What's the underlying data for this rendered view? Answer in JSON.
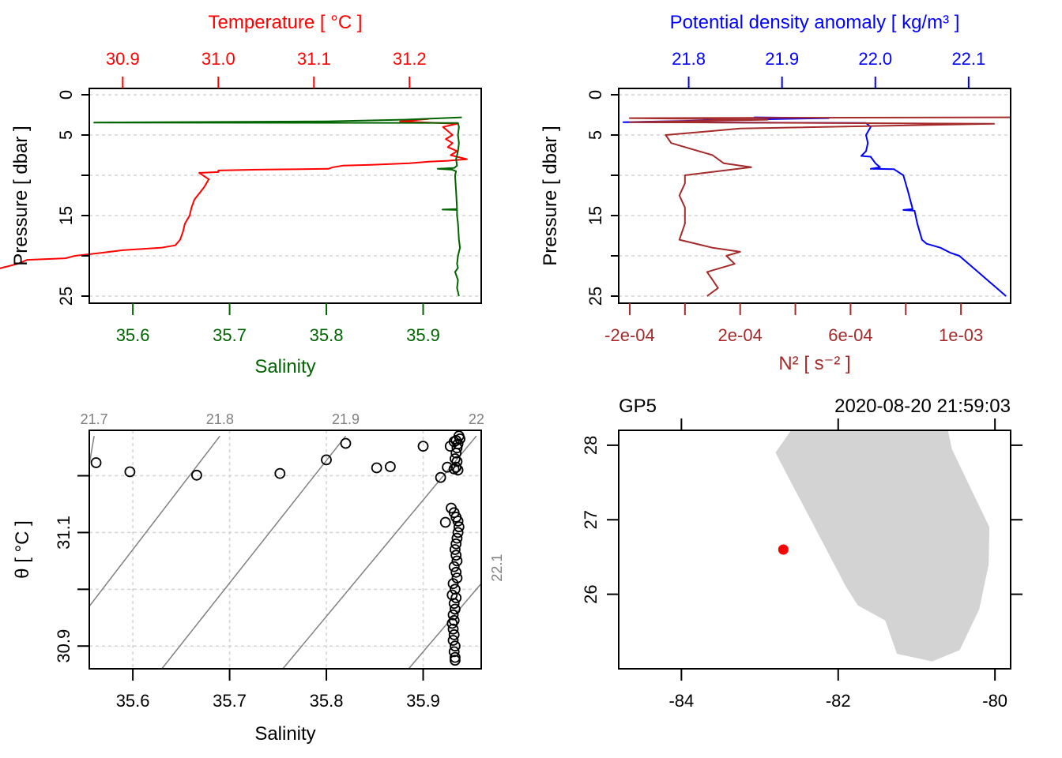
{
  "colors": {
    "temperature": "#ff0000",
    "salinity": "#006400",
    "density": "#0000ff",
    "n2": "#a52a2a",
    "isopycnal": "#808080",
    "grid": "#d3d3d3",
    "land": "#d3d3d3",
    "station": "#ff0000",
    "axis": "#000000"
  },
  "chart_data": [
    {
      "id": "ts-profile",
      "type": "line",
      "title": "",
      "ylabel": "Pressure [ dbar ]",
      "ylim": [
        0,
        25
      ],
      "yreverse": true,
      "yticks": [
        0,
        5,
        10,
        15,
        20,
        25
      ],
      "ytick_labels": [
        "0",
        "5",
        "",
        "15",
        "",
        "25"
      ],
      "grid": "horizontal-dashed",
      "top_axis": {
        "label": "Temperature [ °C ]",
        "range": [
          30.865,
          31.275
        ],
        "ticks": [
          30.9,
          31.0,
          31.1,
          31.2
        ],
        "tick_labels": [
          "30.9",
          "31.0",
          "31.1",
          "31.2"
        ]
      },
      "bottom_axis": {
        "label": "Salinity",
        "range": [
          35.555,
          35.96
        ],
        "ticks": [
          35.6,
          35.7,
          35.8,
          35.9
        ],
        "tick_labels": [
          "35.6",
          "35.7",
          "35.8",
          "35.9"
        ]
      },
      "series": [
        {
          "name": "Temperature",
          "axis": "top",
          "points": [
            [
              31.22,
              3.0
            ],
            [
              31.19,
              3.3
            ],
            [
              31.21,
              3.4
            ],
            [
              31.25,
              3.6
            ],
            [
              31.235,
              4.0
            ],
            [
              31.24,
              4.5
            ],
            [
              31.245,
              5.0
            ],
            [
              31.238,
              5.5
            ],
            [
              31.245,
              6.0
            ],
            [
              31.24,
              6.5
            ],
            [
              31.25,
              7.0
            ],
            [
              31.243,
              7.5
            ],
            [
              31.26,
              8.0
            ],
            [
              31.24,
              8.2
            ],
            [
              31.22,
              8.3
            ],
            [
              31.2,
              8.5
            ],
            [
              31.18,
              8.6
            ],
            [
              31.16,
              8.7
            ],
            [
              31.13,
              8.8
            ],
            [
              31.12,
              9.0
            ],
            [
              31.115,
              9.2
            ],
            [
              31.04,
              9.3
            ],
            [
              31.0,
              9.4
            ],
            [
              31.0,
              9.6
            ],
            [
              30.98,
              9.7
            ],
            [
              30.99,
              10.5
            ],
            [
              30.985,
              11.5
            ],
            [
              30.975,
              13.0
            ],
            [
              30.972,
              14.0
            ],
            [
              30.97,
              15.0
            ],
            [
              30.965,
              16.0
            ],
            [
              30.963,
              17.0
            ],
            [
              30.96,
              18.0
            ],
            [
              30.955,
              18.7
            ],
            [
              30.94,
              19.0
            ],
            [
              30.9,
              19.3
            ],
            [
              30.88,
              19.6
            ],
            [
              30.85,
              20.0
            ],
            [
              30.84,
              20.3
            ],
            [
              30.8,
              20.5
            ],
            [
              30.79,
              21.0
            ],
            [
              30.77,
              21.6
            ],
            [
              30.72,
              21.9
            ],
            [
              30.7,
              22.1
            ],
            [
              30.66,
              22.7
            ],
            [
              30.62,
              23.0
            ],
            [
              30.6,
              23.3
            ],
            [
              30.57,
              23.6
            ],
            [
              30.54,
              24.0
            ],
            [
              30.52,
              24.3
            ],
            [
              30.5,
              24.7
            ],
            [
              30.48,
              25.0
            ]
          ]
        },
        {
          "name": "Salinity",
          "axis": "bottom",
          "points": [
            [
              35.937,
              25.0
            ],
            [
              35.935,
              24.0
            ],
            [
              35.936,
              23.0
            ],
            [
              35.933,
              22.0
            ],
            [
              35.936,
              21.5
            ],
            [
              35.935,
              21.0
            ],
            [
              35.936,
              20.0
            ],
            [
              35.938,
              19.0
            ],
            [
              35.937,
              18.0
            ],
            [
              35.936,
              16.0
            ],
            [
              35.935,
              15.0
            ],
            [
              35.935,
              14.3
            ],
            [
              35.92,
              14.25
            ],
            [
              35.935,
              14.2
            ],
            [
              35.934,
              12.0
            ],
            [
              35.933,
              10.0
            ],
            [
              35.934,
              9.5
            ],
            [
              35.93,
              9.3
            ],
            [
              35.915,
              9.2
            ],
            [
              35.932,
              9.1
            ],
            [
              35.935,
              8.8
            ],
            [
              35.934,
              8.0
            ],
            [
              35.936,
              7.0
            ],
            [
              35.937,
              6.0
            ],
            [
              35.936,
              5.0
            ],
            [
              35.937,
              4.0
            ],
            [
              35.936,
              3.5
            ],
            [
              35.56,
              3.45
            ],
            [
              35.8,
              3.3
            ],
            [
              35.88,
              3.1
            ],
            [
              35.94,
              2.8
            ]
          ]
        }
      ]
    },
    {
      "id": "density-n2-profile",
      "type": "line",
      "ylabel": "Pressure [ dbar ]",
      "ylim": [
        0,
        25
      ],
      "yreverse": true,
      "yticks": [
        0,
        5,
        10,
        15,
        20,
        25
      ],
      "ytick_labels": [
        "0",
        "5",
        "",
        "15",
        "",
        "25"
      ],
      "grid": "horizontal-dashed",
      "top_axis": {
        "label": "Potential density anomaly [ kg/m³ ]",
        "range": [
          21.725,
          22.145
        ],
        "ticks": [
          21.8,
          21.9,
          22.0,
          22.1
        ],
        "tick_labels": [
          "21.8",
          "21.9",
          "22.0",
          "22.1"
        ]
      },
      "bottom_axis": {
        "label": "N² [ s⁻² ]",
        "range": [
          -0.00024,
          0.00118
        ],
        "ticks": [
          -0.0002,
          0.0,
          0.0002,
          0.0004,
          0.0006,
          0.0008,
          0.001
        ],
        "tick_labels": [
          "-2e-04",
          "",
          "2e-04",
          "",
          "6e-04",
          "",
          "1e-03"
        ]
      },
      "series": [
        {
          "name": "Potential density anomaly",
          "axis": "top",
          "points": [
            [
              21.87,
              2.8
            ],
            [
              21.95,
              2.9
            ],
            [
              21.9,
              3.0
            ],
            [
              21.73,
              3.4
            ],
            [
              21.99,
              3.5
            ],
            [
              21.995,
              4.0
            ],
            [
              21.99,
              5.0
            ],
            [
              21.992,
              6.0
            ],
            [
              21.99,
              7.0
            ],
            [
              21.985,
              7.6
            ],
            [
              21.995,
              7.7
            ],
            [
              22.0,
              8.5
            ],
            [
              22.005,
              9.0
            ],
            [
              21.995,
              9.2
            ],
            [
              22.02,
              9.25
            ],
            [
              22.03,
              10.0
            ],
            [
              22.035,
              12.0
            ],
            [
              22.04,
              14.2
            ],
            [
              22.03,
              14.3
            ],
            [
              22.042,
              14.4
            ],
            [
              22.045,
              16.0
            ],
            [
              22.05,
              18.0
            ],
            [
              22.055,
              18.5
            ],
            [
              22.07,
              19.0
            ],
            [
              22.08,
              19.6
            ],
            [
              22.09,
              20.0
            ],
            [
              22.1,
              21.0
            ],
            [
              22.11,
              22.0
            ],
            [
              22.12,
              23.0
            ],
            [
              22.13,
              24.0
            ],
            [
              22.135,
              24.5
            ],
            [
              22.14,
              25.0
            ]
          ]
        },
        {
          "name": "N2",
          "axis": "bottom",
          "points": [
            [
              0.00118,
              2.8
            ],
            [
              -0.0002,
              2.9
            ],
            [
              0.0003,
              3.1
            ],
            [
              -0.0002,
              3.4
            ],
            [
              0.00112,
              3.6
            ],
            [
              0.0002,
              4.2
            ],
            [
              -7e-05,
              5.0
            ],
            [
              -5e-05,
              6.0
            ],
            [
              0.0,
              6.5
            ],
            [
              0.0001,
              7.5
            ],
            [
              0.00014,
              8.5
            ],
            [
              0.00024,
              9.0
            ],
            [
              0.0,
              10.0
            ],
            [
              0.0,
              11.0
            ],
            [
              -2e-05,
              12.5
            ],
            [
              0.0,
              14.0
            ],
            [
              0.0,
              16.0
            ],
            [
              -2e-05,
              18.0
            ],
            [
              0.0001,
              19.0
            ],
            [
              0.0002,
              19.5
            ],
            [
              0.00015,
              20.0
            ],
            [
              0.00018,
              21.0
            ],
            [
              8e-05,
              22.0
            ],
            [
              0.0001,
              23.0
            ],
            [
              0.00012,
              24.0
            ],
            [
              8e-05,
              25.0
            ]
          ]
        }
      ]
    },
    {
      "id": "ts-diagram",
      "type": "scatter",
      "xlabel": "Salinity",
      "ylabel": "θ [ °C ]",
      "xlim": [
        35.555,
        35.96
      ],
      "ylim": [
        30.86,
        31.28
      ],
      "xticks": [
        35.6,
        35.7,
        35.8,
        35.9
      ],
      "xtick_labels": [
        "35.6",
        "35.7",
        "35.8",
        "35.9"
      ],
      "yticks": [
        30.9,
        31.0,
        31.1,
        31.2
      ],
      "ytick_labels": [
        "30.9",
        "",
        "31.1",
        ""
      ],
      "grid": "dashed",
      "isopycnals": {
        "values": [
          21.7,
          21.8,
          21.9,
          22.0,
          22.1
        ],
        "labels": [
          "21.7",
          "21.8",
          "21.9",
          "22",
          "22.1"
        ],
        "lines": [
          {
            "s0": 35.555,
            "t0": 31.22,
            "s1": 35.56,
            "t1": 31.27
          },
          {
            "s0": 35.555,
            "t0": 30.97,
            "s1": 35.69,
            "t1": 31.27
          },
          {
            "s0": 35.63,
            "t0": 30.86,
            "s1": 35.82,
            "t1": 31.27
          },
          {
            "s0": 35.755,
            "t0": 30.86,
            "s1": 35.955,
            "t1": 31.27
          },
          {
            "s0": 35.885,
            "t0": 30.86,
            "s1": 35.96,
            "t1": 31.01
          }
        ]
      },
      "points": [
        [
          35.562,
          31.223
        ],
        [
          35.597,
          31.207
        ],
        [
          35.666,
          31.201
        ],
        [
          35.752,
          31.204
        ],
        [
          35.8,
          31.228
        ],
        [
          35.82,
          31.257
        ],
        [
          35.852,
          31.214
        ],
        [
          35.866,
          31.216
        ],
        [
          35.9,
          31.252
        ],
        [
          35.918,
          31.197
        ],
        [
          35.925,
          31.215
        ],
        [
          35.928,
          31.252
        ],
        [
          35.932,
          31.26
        ],
        [
          35.934,
          31.262
        ],
        [
          35.936,
          31.256
        ],
        [
          35.935,
          31.249
        ],
        [
          35.934,
          31.24
        ],
        [
          35.933,
          31.23
        ],
        [
          35.935,
          31.225
        ],
        [
          35.934,
          31.215
        ],
        [
          35.936,
          31.21
        ],
        [
          35.932,
          31.212
        ],
        [
          35.937,
          31.27
        ],
        [
          35.938,
          31.265
        ],
        [
          35.929,
          31.143
        ],
        [
          35.923,
          31.118
        ],
        [
          35.932,
          31.135
        ],
        [
          35.934,
          31.127
        ],
        [
          35.936,
          31.12
        ],
        [
          35.937,
          31.11
        ],
        [
          35.936,
          31.1
        ],
        [
          35.935,
          31.09
        ],
        [
          35.934,
          31.08
        ],
        [
          35.933,
          31.07
        ],
        [
          35.934,
          31.06
        ],
        [
          35.935,
          31.05
        ],
        [
          35.932,
          31.04
        ],
        [
          35.934,
          31.03
        ],
        [
          35.935,
          31.02
        ],
        [
          35.931,
          31.01
        ],
        [
          35.933,
          31.0
        ],
        [
          35.93,
          30.99
        ],
        [
          35.934,
          30.985
        ],
        [
          35.932,
          30.975
        ],
        [
          35.933,
          30.965
        ],
        [
          35.931,
          30.955
        ],
        [
          35.932,
          30.945
        ],
        [
          35.93,
          30.94
        ],
        [
          35.931,
          30.93
        ],
        [
          35.932,
          30.92
        ],
        [
          35.931,
          30.91
        ],
        [
          35.933,
          30.9
        ],
        [
          35.932,
          30.89
        ],
        [
          35.933,
          30.88
        ],
        [
          35.933,
          30.875
        ]
      ]
    },
    {
      "id": "station-map",
      "type": "scatter",
      "station_label": "GP5",
      "timestamp": "2020-08-20 21:59:03",
      "xlim": [
        -84.8,
        -79.8
      ],
      "ylim": [
        25.0,
        28.2
      ],
      "xticks": [
        -84,
        -82,
        -80
      ],
      "xtick_labels": [
        "-84",
        "-82",
        "-80"
      ],
      "yticks": [
        26,
        27,
        28
      ],
      "ytick_labels": [
        "26",
        "27",
        "28"
      ],
      "land_polygon": [
        [
          -82.6,
          28.2
        ],
        [
          -82.8,
          27.9
        ],
        [
          -82.6,
          27.5
        ],
        [
          -82.4,
          27.1
        ],
        [
          -82.15,
          26.6
        ],
        [
          -81.9,
          26.1
        ],
        [
          -81.75,
          25.85
        ],
        [
          -81.4,
          25.65
        ],
        [
          -81.25,
          25.2
        ],
        [
          -80.8,
          25.1
        ],
        [
          -80.45,
          25.25
        ],
        [
          -80.2,
          25.8
        ],
        [
          -80.08,
          26.4
        ],
        [
          -80.07,
          26.9
        ],
        [
          -80.3,
          27.4
        ],
        [
          -80.55,
          27.95
        ],
        [
          -80.6,
          28.2
        ]
      ],
      "station": {
        "lon": -82.7,
        "lat": 26.6
      }
    }
  ]
}
